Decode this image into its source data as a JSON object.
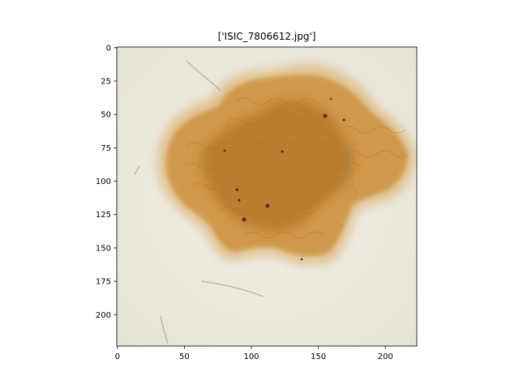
{
  "figure": {
    "title": "['ISIC_7806612.jpg']",
    "image_description": "dermoscopy image of a pigmented skin lesion on pale skin",
    "colors": {
      "background": "#ffffff",
      "skin": "#eeece2",
      "lesion_outer": "#d8a55f",
      "lesion_core": "#b87a2e",
      "dots": "#5b2a12",
      "hair": "#8f8a80"
    }
  },
  "chart_data": {
    "type": "image",
    "title": "['ISIC_7806612.jpg']",
    "xlabel": "",
    "ylabel": "",
    "xlim": [
      0,
      224
    ],
    "ylim": [
      224,
      0
    ],
    "x_ticks": [
      "0",
      "50",
      "100",
      "150",
      "200"
    ],
    "y_ticks": [
      "0",
      "25",
      "50",
      "75",
      "100",
      "125",
      "150",
      "175",
      "200"
    ],
    "grid": false
  }
}
